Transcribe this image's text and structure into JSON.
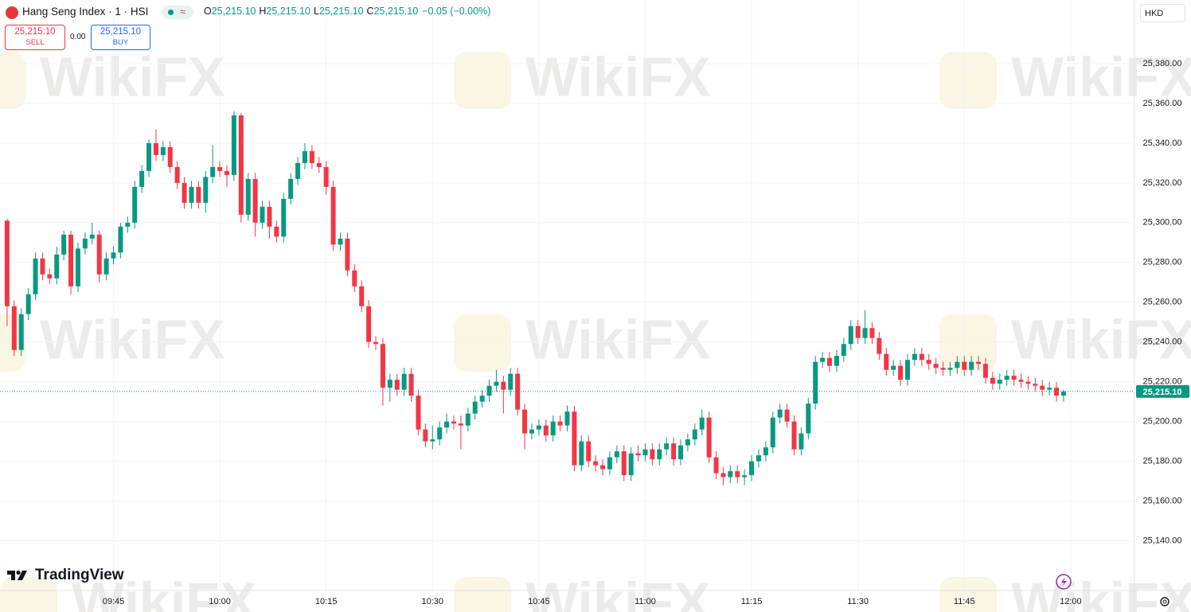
{
  "header": {
    "title": "Hang Seng Index · 1 · HSI",
    "ohlc": [
      {
        "key": "O",
        "value": "25,215.10"
      },
      {
        "key": "H",
        "value": "25,215.10"
      },
      {
        "key": "L",
        "value": "25,215.10"
      },
      {
        "key": "C",
        "value": "25,215.10"
      }
    ],
    "change": "−0.05 (−0.00%)"
  },
  "trade": {
    "sell_price": "25,215.10",
    "sell": "SELL",
    "spread": "0.00",
    "buy_price": "25,215.10",
    "buy": "BUY"
  },
  "currency": "HKD",
  "brand": "TradingView",
  "watermark": "WikiFX",
  "chart_data": {
    "type": "candlestick",
    "up_color": "#089981",
    "down_color": "#f23645",
    "grid": true,
    "x": [
      "09:30",
      "09:31",
      "09:32",
      "09:33",
      "09:34",
      "09:35",
      "09:36",
      "09:37",
      "09:38",
      "09:39",
      "09:40",
      "09:41",
      "09:42",
      "09:43",
      "09:44",
      "09:45",
      "09:46",
      "09:47",
      "09:48",
      "09:49",
      "09:50",
      "09:51",
      "09:52",
      "09:53",
      "09:54",
      "09:55",
      "09:56",
      "09:57",
      "09:58",
      "09:59",
      "10:00",
      "10:01",
      "10:02",
      "10:03",
      "10:04",
      "10:05",
      "10:06",
      "10:07",
      "10:08",
      "10:09",
      "10:10",
      "10:11",
      "10:12",
      "10:13",
      "10:14",
      "10:15",
      "10:16",
      "10:17",
      "10:18",
      "10:19",
      "10:20",
      "10:21",
      "10:22",
      "10:23",
      "10:24",
      "10:25",
      "10:26",
      "10:27",
      "10:28",
      "10:29",
      "10:30",
      "10:31",
      "10:32",
      "10:33",
      "10:34",
      "10:35",
      "10:36",
      "10:37",
      "10:38",
      "10:39",
      "10:40",
      "10:41",
      "10:42",
      "10:43",
      "10:44",
      "10:45",
      "10:46",
      "10:47",
      "10:48",
      "10:49",
      "10:50",
      "10:51",
      "10:52",
      "10:53",
      "10:54",
      "10:55",
      "10:56",
      "10:57",
      "10:58",
      "10:59",
      "11:00",
      "11:01",
      "11:02",
      "11:03",
      "11:04",
      "11:05",
      "11:06",
      "11:07",
      "11:08",
      "11:09",
      "11:10",
      "11:11",
      "11:12",
      "11:13",
      "11:14",
      "11:15",
      "11:16",
      "11:17",
      "11:18",
      "11:19",
      "11:20",
      "11:21",
      "11:22",
      "11:23",
      "11:24",
      "11:25",
      "11:26",
      "11:27",
      "11:28",
      "11:29",
      "11:30",
      "11:31",
      "11:32",
      "11:33",
      "11:34",
      "11:35",
      "11:36",
      "11:37",
      "11:38",
      "11:39",
      "11:40",
      "11:41",
      "11:42",
      "11:43",
      "11:44",
      "11:45",
      "11:46",
      "11:47",
      "11:48",
      "11:49",
      "11:50",
      "11:51",
      "11:52",
      "11:53",
      "11:54",
      "11:55",
      "11:56",
      "11:57",
      "11:58",
      "11:59"
    ],
    "open": [
      25301,
      25258,
      25236,
      25254,
      25264,
      25282,
      25274,
      25272,
      25284,
      25294,
      25268,
      25287,
      25292,
      25294,
      25274,
      25282,
      25285,
      25298,
      25300,
      25318,
      25326,
      25340,
      25334,
      25338,
      25328,
      25320,
      25310,
      25318,
      25310,
      25323,
      25328,
      25326,
      25324,
      25354,
      25304,
      25322,
      25300,
      25308,
      25298,
      25293,
      25312,
      25322,
      25330,
      25336,
      25330,
      25328,
      25318,
      25289,
      25292,
      25276,
      25268,
      25258,
      25240,
      25239,
      25217,
      25221,
      25216,
      25224,
      25213,
      25196,
      25190,
      25191,
      25197,
      25200,
      25199,
      25198,
      25204,
      25210,
      25213,
      25218,
      25220,
      25216,
      25224,
      25206,
      25194,
      25196,
      25198,
      25193,
      25200,
      25198,
      25205,
      25178,
      25190,
      25180,
      25178,
      25176,
      25182,
      25185,
      25173,
      25184,
      25183,
      25186,
      25181,
      25186,
      25189,
      25181,
      25188,
      25191,
      25196,
      25202,
      25182,
      25174,
      25172,
      25175,
      25172,
      25173,
      25180,
      25183,
      25187,
      25202,
      25206,
      25200,
      25186,
      25194,
      25209,
      25230,
      25232,
      25228,
      25233,
      25239,
      25248,
      25242,
      25247,
      25242,
      25234,
      25226,
      25228,
      25221,
      25231,
      25234,
      25231,
      25229,
      25227,
      25226,
      25227,
      25230,
      25226,
      25230,
      25229,
      25222,
      25219,
      25221,
      25223,
      25221,
      25220,
      25219,
      25218,
      25216,
      25217,
      25213
    ],
    "high": [
      25302,
      25261,
      25257,
      25267,
      25285,
      25285,
      25277,
      25288,
      25296,
      25296,
      25290,
      25295,
      25300,
      25296,
      25285,
      25288,
      25300,
      25303,
      25321,
      25329,
      25342,
      25347,
      25341,
      25341,
      25331,
      25323,
      25321,
      25321,
      25326,
      25339,
      25331,
      25329,
      25356,
      25355,
      25325,
      25325,
      25311,
      25311,
      25301,
      25315,
      25325,
      25333,
      25340,
      25339,
      25333,
      25331,
      25321,
      25295,
      25295,
      25279,
      25271,
      25261,
      25243,
      25242,
      25224,
      25224,
      25227,
      25227,
      25216,
      25199,
      25198,
      25200,
      25204,
      25203,
      25203,
      25207,
      25213,
      25216,
      25221,
      25226,
      25223,
      25227,
      25227,
      25209,
      25199,
      25201,
      25201,
      25203,
      25203,
      25208,
      25208,
      25193,
      25193,
      25183,
      25181,
      25185,
      25188,
      25188,
      25187,
      25188,
      25189,
      25189,
      25189,
      25192,
      25192,
      25191,
      25194,
      25199,
      25206,
      25205,
      25185,
      25177,
      25178,
      25178,
      25176,
      25183,
      25186,
      25190,
      25205,
      25209,
      25209,
      25203,
      25197,
      25212,
      25233,
      25235,
      25235,
      25236,
      25242,
      25251,
      25251,
      25256,
      25250,
      25245,
      25237,
      25231,
      25231,
      25234,
      25237,
      25237,
      25234,
      25232,
      25230,
      25230,
      25233,
      25233,
      25233,
      25233,
      25232,
      25225,
      25224,
      25226,
      25226,
      25224,
      25223,
      25222,
      25221,
      25220,
      25220,
      25216
    ],
    "low": [
      25248,
      25233,
      25233,
      25251,
      25261,
      25271,
      25269,
      25269,
      25281,
      25264,
      25265,
      25284,
      25289,
      25270,
      25271,
      25279,
      25282,
      25295,
      25297,
      25315,
      25323,
      25331,
      25331,
      25325,
      25317,
      25307,
      25307,
      25307,
      25305,
      25320,
      25323,
      25318,
      25321,
      25300,
      25301,
      25293,
      25297,
      25292,
      25290,
      25290,
      25309,
      25319,
      25327,
      25327,
      25325,
      25314,
      25286,
      25286,
      25273,
      25265,
      25255,
      25237,
      25236,
      25208,
      25210,
      25213,
      25213,
      25210,
      25193,
      25187,
      25186,
      25188,
      25194,
      25196,
      25186,
      25195,
      25201,
      25207,
      25210,
      25215,
      25204,
      25213,
      25203,
      25186,
      25191,
      25193,
      25190,
      25190,
      25195,
      25195,
      25175,
      25175,
      25177,
      25175,
      25173,
      25173,
      25179,
      25170,
      25170,
      25180,
      25180,
      25178,
      25178,
      25183,
      25178,
      25178,
      25185,
      25188,
      25193,
      25179,
      25171,
      25168,
      25169,
      25169,
      25168,
      25170,
      25177,
      25180,
      25184,
      25199,
      25197,
      25183,
      25183,
      25191,
      25206,
      25227,
      25225,
      25225,
      25230,
      25236,
      25239,
      25239,
      25239,
      25231,
      25223,
      25223,
      25218,
      25218,
      25228,
      25228,
      25226,
      25224,
      25223,
      25223,
      25224,
      25223,
      25223,
      25226,
      25219,
      25216,
      25216,
      25218,
      25218,
      25217,
      25216,
      25215,
      25213,
      25213,
      25210,
      25210
    ],
    "close": [
      25258,
      25236,
      25254,
      25264,
      25282,
      25274,
      25272,
      25284,
      25294,
      25268,
      25287,
      25292,
      25294,
      25274,
      25282,
      25285,
      25298,
      25300,
      25318,
      25326,
      25340,
      25334,
      25338,
      25328,
      25320,
      25310,
      25318,
      25310,
      25323,
      25328,
      25326,
      25324,
      25354,
      25304,
      25322,
      25300,
      25308,
      25298,
      25293,
      25312,
      25322,
      25330,
      25336,
      25330,
      25328,
      25318,
      25289,
      25292,
      25276,
      25268,
      25258,
      25240,
      25239,
      25217,
      25221,
      25216,
      25224,
      25213,
      25196,
      25190,
      25191,
      25197,
      25200,
      25199,
      25198,
      25204,
      25210,
      25213,
      25218,
      25220,
      25216,
      25224,
      25206,
      25194,
      25196,
      25198,
      25193,
      25200,
      25198,
      25205,
      25178,
      25190,
      25180,
      25178,
      25176,
      25182,
      25185,
      25173,
      25184,
      25183,
      25186,
      25181,
      25186,
      25189,
      25181,
      25188,
      25191,
      25196,
      25202,
      25182,
      25174,
      25172,
      25175,
      25172,
      25173,
      25180,
      25183,
      25187,
      25202,
      25206,
      25200,
      25186,
      25194,
      25209,
      25230,
      25232,
      25228,
      25233,
      25239,
      25248,
      25242,
      25247,
      25242,
      25234,
      25226,
      25228,
      25221,
      25231,
      25234,
      25231,
      25229,
      25227,
      25226,
      25227,
      25230,
      25226,
      25230,
      25229,
      25222,
      25219,
      25221,
      25223,
      25221,
      25220,
      25219,
      25218,
      25216,
      25217,
      25213,
      25215.1
    ],
    "xlim": [
      "09:29",
      "12:09"
    ],
    "xticks": [
      "09:45",
      "10:00",
      "10:15",
      "10:30",
      "10:45",
      "11:00",
      "11:15",
      "11:30",
      "11:45",
      "12:00"
    ],
    "ylim": [
      25115,
      25412
    ],
    "yticks": [
      {
        "value": 25140,
        "label": "25,140.00"
      },
      {
        "value": 25160,
        "label": "25,160.00"
      },
      {
        "value": 25180,
        "label": "25,180.00"
      },
      {
        "value": 25200,
        "label": "25,200.00"
      },
      {
        "value": 25220,
        "label": "25,220.00"
      },
      {
        "value": 25240,
        "label": "25,240.00"
      },
      {
        "value": 25260,
        "label": "25,260.00"
      },
      {
        "value": 25280,
        "label": "25,280.00"
      },
      {
        "value": 25300,
        "label": "25,300.00"
      },
      {
        "value": 25320,
        "label": "25,320.00"
      },
      {
        "value": 25340,
        "label": "25,340.00"
      },
      {
        "value": 25360,
        "label": "25,360.00"
      },
      {
        "value": 25380,
        "label": "25,380.00"
      }
    ],
    "last_price": {
      "value": 25215.1,
      "label": "25,215.10"
    }
  }
}
